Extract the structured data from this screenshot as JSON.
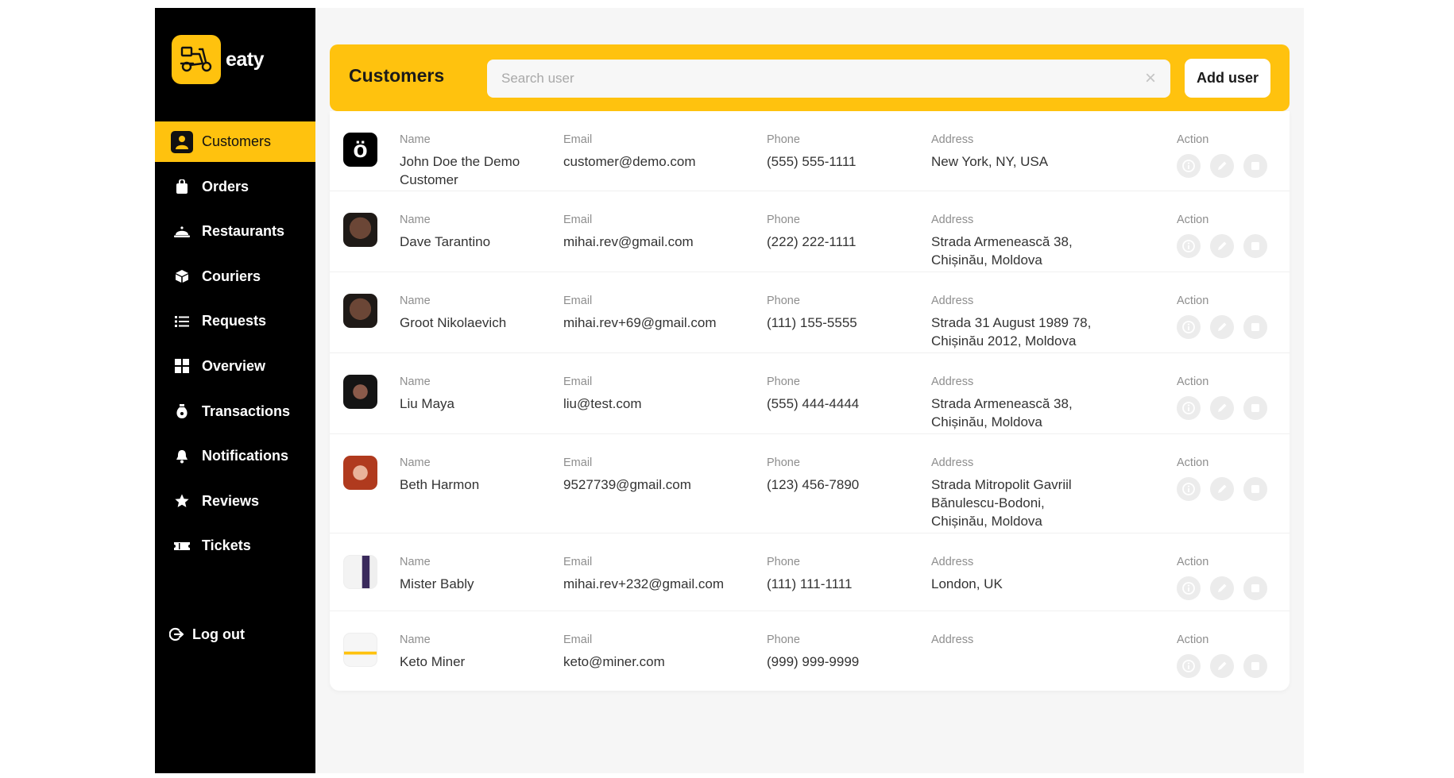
{
  "app": {
    "logo_text": "eaty"
  },
  "sidebar": {
    "items": [
      {
        "label": "Customers",
        "icon": "user-icon",
        "active": true
      },
      {
        "label": "Orders",
        "icon": "bag-icon"
      },
      {
        "label": "Restaurants",
        "icon": "cloche-icon"
      },
      {
        "label": "Couriers",
        "icon": "package-icon"
      },
      {
        "label": "Requests",
        "icon": "list-icon"
      },
      {
        "label": "Overview",
        "icon": "grid-icon"
      },
      {
        "label": "Transactions",
        "icon": "money-bag-icon"
      },
      {
        "label": "Notifications",
        "icon": "bell-icon"
      },
      {
        "label": "Reviews",
        "icon": "star-icon"
      },
      {
        "label": "Tickets",
        "icon": "ticket-icon"
      }
    ],
    "logout_label": "Log out"
  },
  "header": {
    "title": "Customers",
    "search_placeholder": "Search user",
    "search_clear": "×",
    "add_button": "Add user"
  },
  "columns": {
    "name": "Name",
    "email": "Email",
    "phone": "Phone",
    "address": "Address",
    "action": "Action"
  },
  "customers": [
    {
      "name": "John Doe the Demo Customer",
      "email": "customer@demo.com",
      "phone": "(555) 555-1111",
      "address": "New York, NY, USA",
      "avatar": "logo-avatar"
    },
    {
      "name": "Dave Tarantino",
      "email": "mihai.rev@gmail.com",
      "phone": "(222) 222-1111",
      "address": "Strada Armenească 38, Chișinău, Moldova",
      "avatar": "photo-avatar"
    },
    {
      "name": "Groot Nikolaevich",
      "email": "mihai.rev+69@gmail.com",
      "phone": "(111) 155-5555",
      "address": "Strada 31 August 1989 78, Chișinău 2012, Moldova",
      "avatar": "photo-avatar"
    },
    {
      "name": "Liu Maya",
      "email": "liu@test.com",
      "phone": "(555) 444-4444",
      "address": "Strada Armenească 38, Chișinău, Moldova",
      "avatar": "photo-avatar"
    },
    {
      "name": "Beth Harmon",
      "email": "9527739@gmail.com",
      "phone": "(123) 456-7890",
      "address": "Strada Mitropolit Gavriil Bănulescu-Bodoni, Chișinău, Moldova",
      "avatar": "photo-avatar"
    },
    {
      "name": "Mister Bably",
      "email": "mihai.rev+232@gmail.com",
      "phone": "(111) 111-1111",
      "address": "London, UK",
      "avatar": "screenshot-avatar"
    },
    {
      "name": "Keto Miner",
      "email": "keto@miner.com",
      "phone": "(999) 999-9999",
      "address": "",
      "avatar": "screenshot-avatar"
    }
  ],
  "colors": {
    "accent": "#ffc20e",
    "sidebar_bg": "#000000",
    "action_icon_bg": "#ececec"
  }
}
